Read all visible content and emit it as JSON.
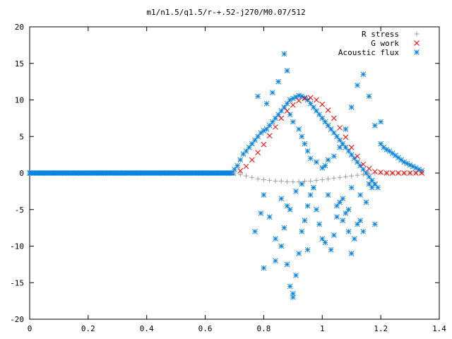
{
  "chart_data": {
    "type": "scatter",
    "title": "m1/n1.5/q1.5/r-+.52-j270/M0.07/512",
    "xlabel": "",
    "ylabel": "",
    "xlim": [
      0,
      1.4
    ],
    "ylim": [
      -20,
      20
    ],
    "xticks": [
      "0",
      "0.2",
      "0.4",
      "0.6",
      "0.8",
      "1",
      "1.2",
      "1.4"
    ],
    "yticks": [
      "-20",
      "-15",
      "-10",
      "-5",
      "0",
      "5",
      "10",
      "15",
      "20"
    ],
    "grid": false,
    "legend_position": "top-right",
    "series": [
      {
        "name": "R stress",
        "marker": "+",
        "color": "#a0a0a0",
        "x": [
          0.7,
          0.72,
          0.74,
          0.76,
          0.78,
          0.8,
          0.82,
          0.84,
          0.86,
          0.88,
          0.9,
          0.92,
          0.94,
          0.96,
          0.98,
          1.0,
          1.02,
          1.04,
          1.06,
          1.08,
          1.1,
          1.12,
          1.14,
          1.16,
          1.18,
          1.2,
          1.22,
          1.24,
          1.26,
          1.28,
          1.3,
          1.32,
          1.34
        ],
        "y": [
          0.0,
          -0.2,
          -0.4,
          -0.6,
          -0.8,
          -0.9,
          -1.0,
          -1.1,
          -1.1,
          -1.2,
          -1.2,
          -1.2,
          -1.1,
          -1.1,
          -1.0,
          -0.9,
          -0.8,
          -0.7,
          -0.6,
          -0.5,
          -0.4,
          -0.3,
          -0.2,
          -0.1,
          0.0,
          0.0,
          0.0,
          0.0,
          0.0,
          0.0,
          0.0,
          0.0,
          0.0
        ]
      },
      {
        "name": "G work",
        "marker": "x",
        "color": "#ff0000",
        "x": [
          0.72,
          0.74,
          0.76,
          0.78,
          0.8,
          0.82,
          0.84,
          0.86,
          0.88,
          0.9,
          0.92,
          0.94,
          0.96,
          0.98,
          1.0,
          1.02,
          1.04,
          1.06,
          1.08,
          1.1,
          1.12,
          1.14,
          1.16,
          1.18,
          1.2,
          1.22,
          1.24,
          1.26,
          1.28,
          1.3,
          1.32,
          1.34
        ],
        "y": [
          0.3,
          0.9,
          1.8,
          2.8,
          3.9,
          5.1,
          6.3,
          7.5,
          8.5,
          9.3,
          9.9,
          10.2,
          10.3,
          10.0,
          9.4,
          8.6,
          7.5,
          6.2,
          4.9,
          3.5,
          2.3,
          1.2,
          0.6,
          0.2,
          0.1,
          0.0,
          0.0,
          0.0,
          0.0,
          0.0,
          0.0,
          0.0
        ]
      },
      {
        "name": "Acoustic flux",
        "marker": "*",
        "color": "#0a84e0",
        "x": [
          0.0,
          0.04,
          0.08,
          0.12,
          0.16,
          0.2,
          0.24,
          0.28,
          0.32,
          0.36,
          0.4,
          0.44,
          0.48,
          0.52,
          0.56,
          0.6,
          0.64,
          0.68,
          0.7,
          0.71,
          0.72,
          0.73,
          0.74,
          0.75,
          0.76,
          0.77,
          0.78,
          0.79,
          0.8,
          0.81,
          0.82,
          0.83,
          0.84,
          0.85,
          0.86,
          0.87,
          0.88,
          0.89,
          0.9,
          0.91,
          0.92,
          0.93,
          0.94,
          0.95,
          0.96,
          0.97,
          0.98,
          0.99,
          1.0,
          1.01,
          1.02,
          1.03,
          1.04,
          1.05,
          1.06,
          1.07,
          1.08,
          1.09,
          1.1,
          1.11,
          1.12,
          1.13,
          1.14,
          1.15,
          1.16,
          1.17,
          1.18,
          1.19,
          1.2,
          1.21,
          1.22,
          1.23,
          1.24,
          1.25,
          1.26,
          1.27,
          1.28,
          1.29,
          1.3,
          1.31,
          1.32,
          1.33,
          1.34,
          0.77,
          0.79,
          0.8,
          0.82,
          0.84,
          0.86,
          0.87,
          0.88,
          0.89,
          0.9,
          0.91,
          0.92,
          0.93,
          0.94,
          0.95,
          0.96,
          0.97,
          0.98,
          0.99,
          1.01,
          1.03,
          1.04,
          1.05,
          1.06,
          1.07,
          1.08,
          1.09,
          1.1,
          1.11,
          1.12,
          1.13,
          1.15,
          1.17,
          0.78,
          0.81,
          0.83,
          0.85,
          0.87,
          0.88,
          0.89,
          0.9,
          0.92,
          0.93,
          0.94,
          0.95,
          0.96,
          0.98,
          1.0,
          1.01,
          1.02,
          1.04,
          1.06,
          1.08,
          1.1,
          1.12,
          1.14,
          1.16,
          1.18,
          1.2,
          0.86,
          0.88,
          0.89,
          0.91,
          0.93,
          0.97,
          1.02,
          1.05,
          1.1,
          1.13,
          1.16,
          0.8,
          0.84,
          0.9,
          0.95,
          1.0,
          1.07,
          1.09,
          1.14,
          1.18
        ],
        "y": [
          0.0,
          0.0,
          0.0,
          0.0,
          0.0,
          0.0,
          0.0,
          0.0,
          0.0,
          0.0,
          0.0,
          0.0,
          0.0,
          0.0,
          0.0,
          0.0,
          0.0,
          0.0,
          0.5,
          1.0,
          1.8,
          2.6,
          3.0,
          3.5,
          4.0,
          4.5,
          5.0,
          5.5,
          5.8,
          6.0,
          6.5,
          7.0,
          7.5,
          8.0,
          8.5,
          9.0,
          9.5,
          10.0,
          10.2,
          10.4,
          10.6,
          10.5,
          10.3,
          10.0,
          9.5,
          9.0,
          8.5,
          8.0,
          7.5,
          7.0,
          6.5,
          6.0,
          5.5,
          5.0,
          4.5,
          4.0,
          3.5,
          3.0,
          2.5,
          2.0,
          1.5,
          1.0,
          0.5,
          0.0,
          -0.5,
          -1.0,
          -1.5,
          -2.0,
          4.0,
          3.5,
          3.2,
          3.0,
          2.7,
          2.4,
          2.1,
          1.8,
          1.5,
          1.3,
          1.1,
          0.9,
          0.7,
          0.5,
          0.3,
          -8.0,
          -5.5,
          -3.0,
          -6.0,
          -9.0,
          -10.0,
          -7.5,
          -12.5,
          -15.5,
          -17.0,
          -14.0,
          -11.0,
          -8.0,
          -6.5,
          -4.5,
          -3.0,
          -2.0,
          -5.0,
          -7.0,
          -9.5,
          -10.5,
          -8.5,
          -6.0,
          -4.0,
          -3.5,
          -5.5,
          -8.0,
          -11.0,
          -9.0,
          -7.0,
          -6.5,
          -4.0,
          -2.0,
          10.5,
          9.5,
          11.0,
          12.5,
          16.3,
          14.0,
          8.0,
          7.0,
          6.0,
          5.0,
          4.0,
          3.0,
          2.0,
          1.5,
          0.7,
          1.0,
          1.8,
          2.3,
          3.5,
          6.0,
          9.0,
          12.0,
          13.5,
          10.5,
          6.5,
          7.0,
          -3.5,
          -4.5,
          -5.0,
          -2.5,
          -1.5,
          -2.0,
          -3.0,
          -4.5,
          -2.0,
          -3.0,
          -1.5,
          -13.0,
          -12.0,
          -16.5,
          -10.5,
          -9.0,
          -6.5,
          -5.0,
          -8.0,
          -7.0
        ]
      }
    ]
  },
  "legend": {
    "r_stress_label": "R stress",
    "g_work_label": "G work",
    "acoustic_label": "Acoustic flux"
  },
  "title": "m1/n1.5/q1.5/r-+.52-j270/M0.07/512"
}
